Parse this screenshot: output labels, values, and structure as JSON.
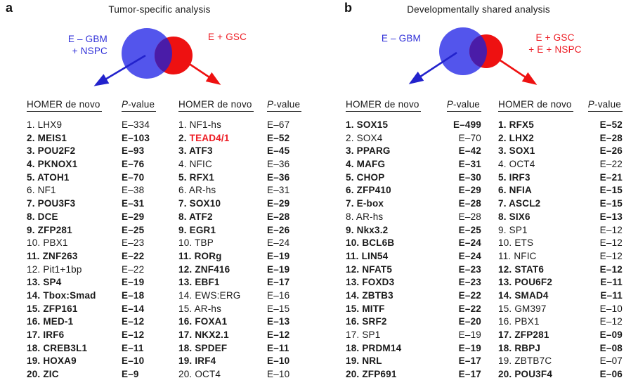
{
  "colors": {
    "blue-circle": "#5355ec",
    "red-circle": "#ee1111",
    "overlap": "#4a1ca8",
    "blue-text": "#2f2fd8",
    "red-text": "#ed1c24",
    "blue-arrow": "#2222cc",
    "red-arrow": "#ee1111"
  },
  "panels": [
    {
      "letter": "a",
      "title": "Tumor-specific analysis",
      "venn": {
        "left_label": [
          "E – GBM",
          "+ NSPC"
        ],
        "right_label": [
          "E + GSC"
        ]
      },
      "tables": [
        {
          "header": {
            "motif": "HOMER de novo",
            "p_italic": "P",
            "p_rest": "-value"
          },
          "rows": [
            [
              "1.",
              "LHX9",
              "E–334",
              0
            ],
            [
              "2.",
              "MEIS1",
              "E–103",
              1
            ],
            [
              "3.",
              "POU2F2",
              "E–93",
              1
            ],
            [
              "4.",
              "PKNOX1",
              "E–76",
              1
            ],
            [
              "5.",
              "ATOH1",
              "E–70",
              1
            ],
            [
              "6.",
              "NF1",
              "E–38",
              0
            ],
            [
              "7.",
              "POU3F3",
              "E–31",
              1
            ],
            [
              "8.",
              "DCE",
              "E–29",
              1
            ],
            [
              "9.",
              "ZFP281",
              "E–25",
              1
            ],
            [
              "10.",
              "PBX1",
              "E–23",
              0
            ],
            [
              "11.",
              "ZNF263",
              "E–22",
              1
            ],
            [
              "12.",
              "Pit1+1bp",
              "E–22",
              0
            ],
            [
              "13.",
              "SP4",
              "E–19",
              1
            ],
            [
              "14.",
              "Tbox:Smad",
              "E–18",
              1
            ],
            [
              "15.",
              "ZFP161",
              "E–14",
              1
            ],
            [
              "16.",
              "MED-1",
              "E–12",
              1
            ],
            [
              "17.",
              "IRF6",
              "E–12",
              1
            ],
            [
              "18.",
              "CREB3L1",
              "E–11",
              1
            ],
            [
              "19.",
              "HOXA9",
              "E–10",
              1
            ],
            [
              "20.",
              "ZIC",
              "E–9",
              1
            ]
          ]
        },
        {
          "header": {
            "motif": "HOMER de novo",
            "p_italic": "P",
            "p_rest": "-value"
          },
          "rows": [
            [
              "1.",
              "NF1-hs",
              "E–67",
              0
            ],
            [
              "2.",
              "TEAD4/1",
              "E–52",
              2
            ],
            [
              "3.",
              "ATF3",
              "E–45",
              1
            ],
            [
              "4.",
              "NFIC",
              "E–36",
              0
            ],
            [
              "5.",
              "RFX1",
              "E–36",
              1
            ],
            [
              "6.",
              "AR-hs",
              "E–31",
              0
            ],
            [
              "7.",
              "SOX10",
              "E–29",
              1
            ],
            [
              "8.",
              "ATF2",
              "E–28",
              1
            ],
            [
              "9.",
              "EGR1",
              "E–26",
              1
            ],
            [
              "10.",
              "TBP",
              "E–24",
              0
            ],
            [
              "11.",
              "RORg",
              "E–19",
              1
            ],
            [
              "12.",
              "ZNF416",
              "E–19",
              1
            ],
            [
              "13.",
              "EBF1",
              "E–17",
              1
            ],
            [
              "14.",
              "EWS:ERG",
              "E–16",
              0
            ],
            [
              "15.",
              "AR-hs",
              "E–15",
              0
            ],
            [
              "16.",
              "FOXA1",
              "E–13",
              1
            ],
            [
              "17.",
              "NKX2.1",
              "E–12",
              1
            ],
            [
              "18.",
              "SPDEF",
              "E–11",
              1
            ],
            [
              "19.",
              "IRF4",
              "E–10",
              1
            ],
            [
              "20.",
              "OCT4",
              "E–10",
              0
            ]
          ]
        }
      ]
    },
    {
      "letter": "b",
      "title": "Developmentally shared analysis",
      "venn": {
        "left_label": [
          "E – GBM"
        ],
        "right_label": [
          "E + GSC",
          "+ E + NSPC"
        ]
      },
      "tables": [
        {
          "header": {
            "motif": "HOMER de novo",
            "p_italic": "P",
            "p_rest": "-value"
          },
          "rows": [
            [
              "1.",
              "SOX15",
              "E–499",
              1
            ],
            [
              "2.",
              "SOX4",
              "E–70",
              0
            ],
            [
              "3.",
              "PPARG",
              "E–42",
              1
            ],
            [
              "4.",
              "MAFG",
              "E–31",
              1
            ],
            [
              "5.",
              "CHOP",
              "E–30",
              1
            ],
            [
              "6.",
              "ZFP410",
              "E–29",
              1
            ],
            [
              "7.",
              "E-box",
              "E–28",
              1
            ],
            [
              "8.",
              "AR-hs",
              "E–28",
              0
            ],
            [
              "9.",
              "Nkx3.2",
              "E–25",
              1
            ],
            [
              "10.",
              "BCL6B",
              "E–24",
              1
            ],
            [
              "11.",
              "LIN54",
              "E–24",
              1
            ],
            [
              "12.",
              "NFAT5",
              "E–23",
              1
            ],
            [
              "13.",
              "FOXD3",
              "E–23",
              1
            ],
            [
              "14.",
              "ZBTB3",
              "E–22",
              1
            ],
            [
              "15.",
              "MITF",
              "E–22",
              1
            ],
            [
              "16.",
              "SRF2",
              "E–20",
              1
            ],
            [
              "17.",
              "SP1",
              "E–19",
              0
            ],
            [
              "18.",
              "PRDM14",
              "E–19",
              1
            ],
            [
              "19.",
              "NRL",
              "E–17",
              1
            ],
            [
              "20.",
              "ZFP691",
              "E–17",
              1
            ]
          ]
        },
        {
          "header": {
            "motif": "HOMER de novo",
            "p_italic": "P",
            "p_rest": "-value"
          },
          "rows": [
            [
              "1.",
              "RFX5",
              "E–52",
              1
            ],
            [
              "2.",
              "LHX2",
              "E–28",
              1
            ],
            [
              "3.",
              "SOX1",
              "E–26",
              1
            ],
            [
              "4.",
              "OCT4",
              "E–22",
              0
            ],
            [
              "5.",
              "IRF3",
              "E–21",
              1
            ],
            [
              "6.",
              "NFIA",
              "E–15",
              1
            ],
            [
              "7.",
              "ASCL2",
              "E–15",
              1
            ],
            [
              "8.",
              "SIX6",
              "E–13",
              1
            ],
            [
              "9.",
              "SP1",
              "E–12",
              0
            ],
            [
              "10.",
              "ETS",
              "E–12",
              0
            ],
            [
              "11.",
              "NFIC",
              "E–12",
              0
            ],
            [
              "12.",
              "STAT6",
              "E–12",
              1
            ],
            [
              "13.",
              "POU6F2",
              "E–11",
              1
            ],
            [
              "14.",
              "SMAD4",
              "E–11",
              1
            ],
            [
              "15.",
              "GM397",
              "E–10",
              0
            ],
            [
              "16.",
              "PBX1",
              "E–12",
              0
            ],
            [
              "17.",
              "ZFP281",
              "E–09",
              1
            ],
            [
              "18.",
              "RBPJ",
              "E–08",
              1
            ],
            [
              "19.",
              "ZBTB7C",
              "E–07",
              0
            ],
            [
              "20.",
              "POU3F4",
              "E–06",
              1
            ]
          ]
        }
      ]
    }
  ]
}
